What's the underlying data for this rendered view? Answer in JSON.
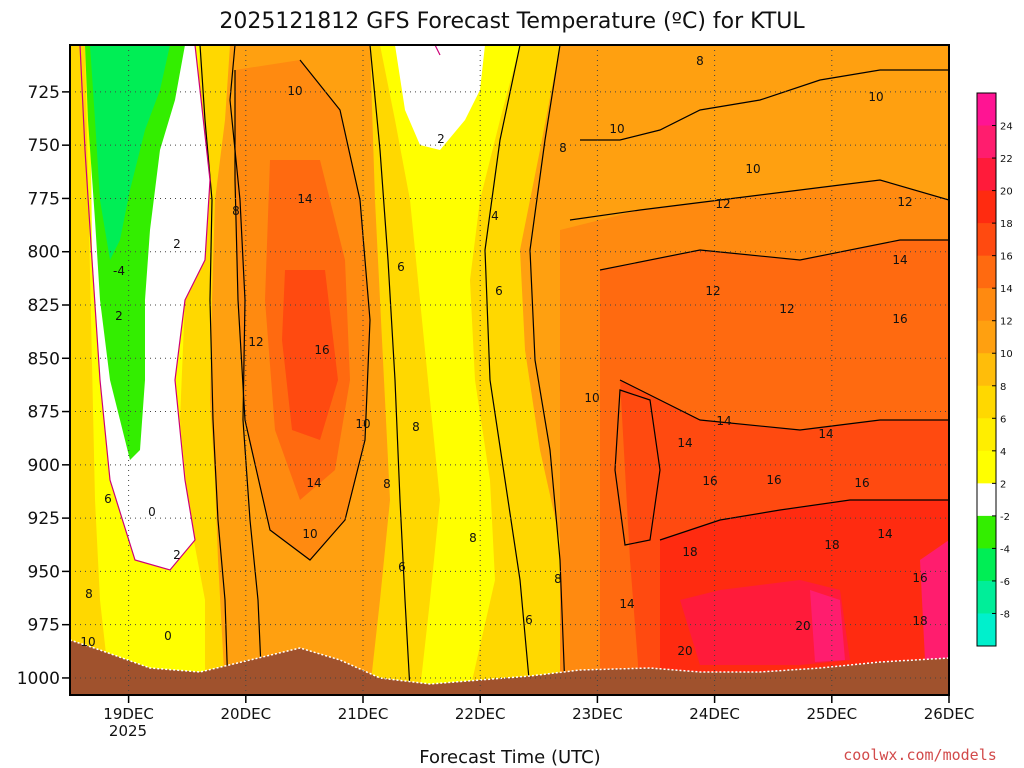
{
  "chart_data": {
    "type": "heatmap",
    "title": "2025121812 GFS Forecast Temperature (ºC) for KTUL",
    "xlabel": "Forecast Time (UTC)",
    "ylabel": "",
    "credit": "coolwx.com/models",
    "y_axis": {
      "ticks": [
        725,
        750,
        775,
        800,
        825,
        850,
        875,
        900,
        925,
        950,
        975,
        1000
      ],
      "range": [
        703,
        1008
      ],
      "units": "hPa"
    },
    "x_axis": {
      "ticks": [
        "19DEC",
        "20DEC",
        "21DEC",
        "22DEC",
        "23DEC",
        "24DEC",
        "25DEC",
        "26DEC"
      ],
      "year_label": "2025",
      "range_days": [
        18.5,
        26.0
      ]
    },
    "colorbar": {
      "levels": [
        24,
        22,
        20,
        18,
        16,
        14,
        12,
        10,
        8,
        6,
        4,
        2,
        -2,
        -4,
        -6,
        -8
      ],
      "colors": [
        "#ff1493",
        "#ff1d6e",
        "#ff1b3a",
        "#ff2b10",
        "#ff4a10",
        "#ff6a10",
        "#ff8a10",
        "#ffa010",
        "#ffbd0a",
        "#ffd800",
        "#ffee00",
        "#ffff00",
        "#ffffff",
        "#33ee00",
        "#00ee55",
        "#00ee99",
        "#00f0cc"
      ]
    },
    "contour_labels": [
      "2",
      "4",
      "6",
      "8",
      "10",
      "12",
      "14",
      "16",
      "18",
      "20",
      "0",
      "-2",
      "-4"
    ],
    "colors": {
      "terrain": "#a0522d",
      "contour": "#000000",
      "freezing_line": "#cc0077",
      "credit": "#d24a4a"
    }
  }
}
